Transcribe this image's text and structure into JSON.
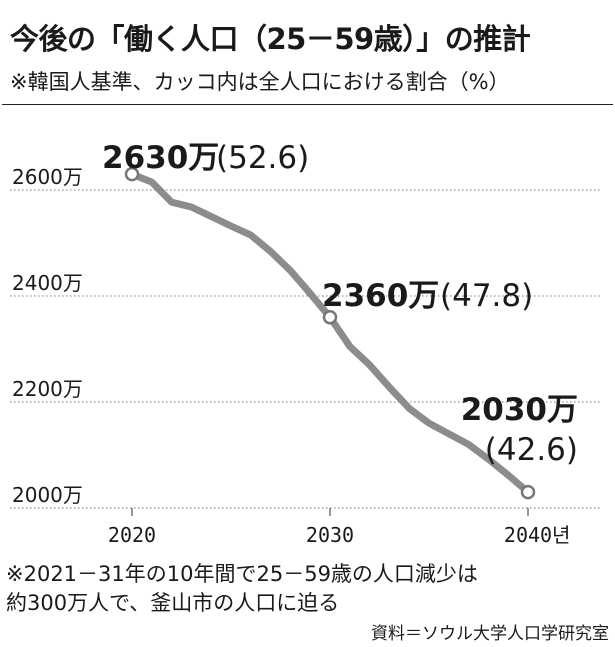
{
  "title": "今後の「働く人口（25－59歳）」の推計",
  "subtitle": "※韓国人基準、カッコ内は全人口における割合（%）",
  "note_line1": "※2021－31年の10年間で25－59歳の人口減少は",
  "note_line2": "約300万人で、釜山市の人口に迫る",
  "source": "資料＝ソウル大学人口学研究室",
  "colors": {
    "line": "#8c8c8c",
    "text": "#1a1a1a",
    "grid": "#777777",
    "marker_fill": "#ffffff"
  },
  "chart_data": {
    "type": "line",
    "x_unit": "년",
    "x": [
      2020,
      2021,
      2022,
      2023,
      2024,
      2025,
      2026,
      2027,
      2028,
      2029,
      2030,
      2031,
      2032,
      2033,
      2034,
      2035,
      2036,
      2037,
      2038,
      2039,
      2040
    ],
    "y": [
      2630,
      2615,
      2577,
      2568,
      2550,
      2532,
      2515,
      2484,
      2448,
      2405,
      2360,
      2305,
      2270,
      2228,
      2188,
      2160,
      2140,
      2120,
      2092,
      2062,
      2030
    ],
    "ylim": [
      2000,
      2660
    ],
    "y_ticks": [
      2000,
      2200,
      2400,
      2600
    ],
    "y_tick_labels": [
      "2000万",
      "2200万",
      "2400万",
      "2600万"
    ],
    "x_ticks": [
      2020,
      2030,
      2040
    ],
    "x_tick_labels": [
      "2020",
      "2030",
      "2040"
    ],
    "grid": true,
    "annotations": [
      {
        "x": 2020,
        "y": 2630,
        "value": "2630万",
        "share": "(52.6)"
      },
      {
        "x": 2030,
        "y": 2360,
        "value": "2360万",
        "share": "(47.8)"
      },
      {
        "x": 2040,
        "y": 2030,
        "value": "2030万",
        "share": "(42.6)"
      }
    ]
  }
}
